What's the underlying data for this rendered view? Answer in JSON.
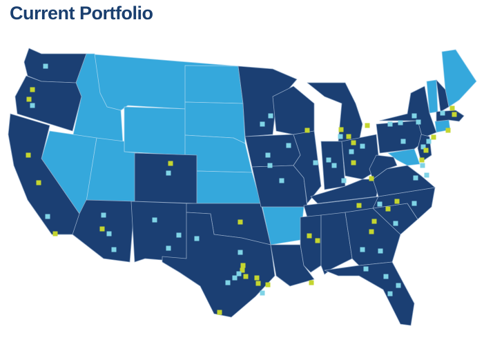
{
  "title": "Current Portfolio",
  "colors": {
    "dark_states": "#1b3f73",
    "light_states": "#35a8dc",
    "marker_green": "#c4d530",
    "marker_blue": "#7fd3e6"
  },
  "legend": []
}
